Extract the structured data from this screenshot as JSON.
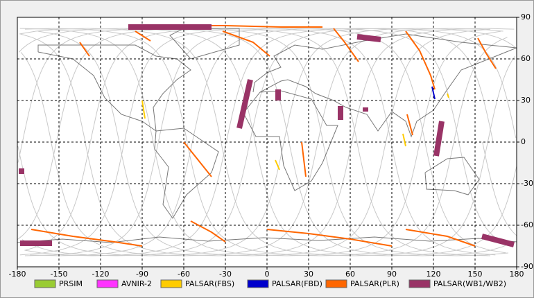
{
  "chart_data": {
    "type": "map",
    "xlim": [
      -180,
      180
    ],
    "ylim": [
      -90,
      90
    ],
    "xticks": [
      -180,
      -150,
      -120,
      -90,
      -60,
      -30,
      0,
      30,
      60,
      90,
      120,
      150,
      180
    ],
    "yticks": [
      90,
      60,
      30,
      0,
      -30,
      -60,
      -90
    ],
    "grid": true,
    "series": [
      {
        "name": "PRSIM",
        "color": "#99cc33"
      },
      {
        "name": "AVNIR-2",
        "color": "#ff33ff"
      },
      {
        "name": "PALSAR(FBS)",
        "color": "#ffcc00",
        "swaths": [
          {
            "lon": [
              -90,
              -88
            ],
            "lat": [
              30,
              17
            ]
          },
          {
            "lon": [
              6,
              9
            ],
            "lat": [
              -13,
              -20
            ]
          },
          {
            "lon": [
              98,
              100
            ],
            "lat": [
              6,
              -3
            ]
          },
          {
            "lon": [
              130,
              131
            ],
            "lat": [
              35,
              32
            ]
          }
        ]
      },
      {
        "name": "PALSAR(FBD)",
        "color": "#0000cc",
        "swaths": [
          {
            "lon": [
              119,
              121
            ],
            "lat": [
              40,
              31
            ]
          }
        ]
      },
      {
        "name": "PALSAR(PLR)",
        "color": "#ff6600",
        "swaths": [
          {
            "lon": [
              -63,
              -30,
              10,
              40
            ],
            "lat": [
              84,
              84,
              83,
              83
            ]
          },
          {
            "lon": [
              -95,
              -84
            ],
            "lat": [
              80,
              73
            ]
          },
          {
            "lon": [
              -32,
              -10,
              2
            ],
            "lat": [
              80,
              72,
              62
            ]
          },
          {
            "lon": [
              48,
              56,
              66
            ],
            "lat": [
              82,
              72,
              58
            ]
          },
          {
            "lon": [
              100,
              110,
              118,
              121
            ],
            "lat": [
              80,
              66,
              48,
              38
            ]
          },
          {
            "lon": [
              152,
              158,
              165
            ],
            "lat": [
              75,
              64,
              53
            ]
          },
          {
            "lon": [
              -135,
              -128
            ],
            "lat": [
              72,
              62
            ]
          },
          {
            "lon": [
              -60,
              -52,
              -40
            ],
            "lat": [
              0,
              -10,
              -25
            ]
          },
          {
            "lon": [
              25,
              28
            ],
            "lat": [
              0,
              -25
            ]
          },
          {
            "lon": [
              101,
              105
            ],
            "lat": [
              20,
              5
            ]
          },
          {
            "lon": [
              -55,
              -40,
              -30
            ],
            "lat": [
              -57,
              -65,
              -72
            ]
          },
          {
            "lon": [
              -170,
              -140,
              -110,
              -90
            ],
            "lat": [
              -63,
              -68,
              -72,
              -75
            ]
          },
          {
            "lon": [
              0,
              30,
              60,
              90
            ],
            "lat": [
              -63,
              -66,
              -70,
              -75
            ]
          },
          {
            "lon": [
              100,
              130,
              150
            ],
            "lat": [
              -63,
              -68,
              -75
            ]
          }
        ]
      },
      {
        "name": "PALSAR(WB1/WB2)",
        "color": "#993366",
        "swaths": [
          {
            "lon": [
              -100,
              -40
            ],
            "lat": [
              83,
              83
            ]
          },
          {
            "lon": [
              -12,
              -20
            ],
            "lat": [
              45,
              10
            ]
          },
          {
            "lon": [
              8,
              8
            ],
            "lat": [
              38,
              30
            ]
          },
          {
            "lon": [
              53,
              53
            ],
            "lat": [
              26,
              16
            ]
          },
          {
            "lon": [
              71,
              71
            ],
            "lat": [
              25,
              22
            ]
          },
          {
            "lon": [
              65,
              82
            ],
            "lat": [
              76,
              74
            ]
          },
          {
            "lon": [
              126,
              122
            ],
            "lat": [
              15,
              -10
            ]
          },
          {
            "lon": [
              -177,
              -177
            ],
            "lat": [
              -19,
              -23
            ]
          },
          {
            "lon": [
              -178,
              -155
            ],
            "lat": [
              -73,
              -73
            ]
          },
          {
            "lon": [
              155,
              178
            ],
            "lat": [
              -68,
              -74
            ]
          }
        ]
      }
    ]
  }
}
